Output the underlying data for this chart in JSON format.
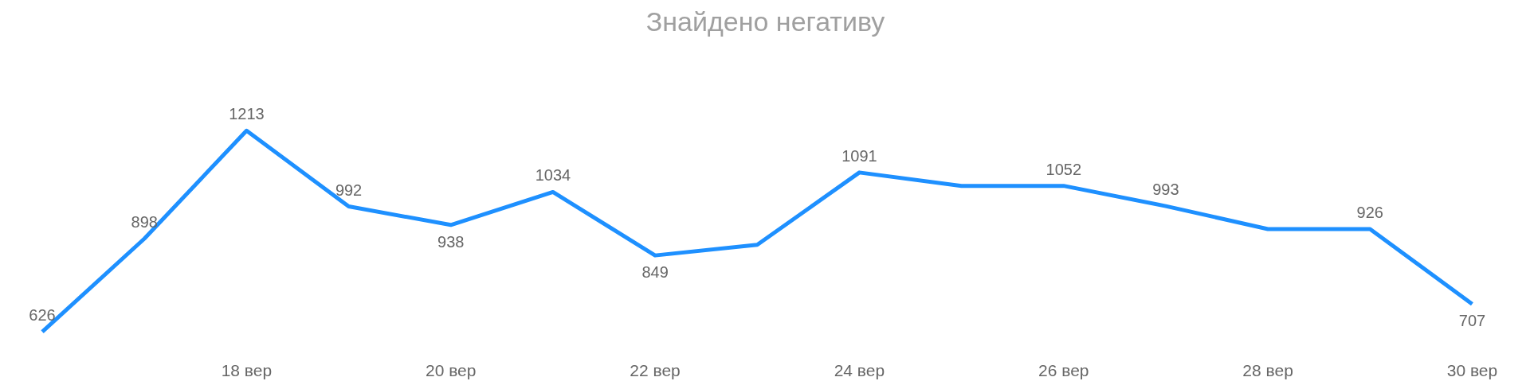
{
  "chart_data": {
    "type": "line",
    "title": "Знайдено негативу",
    "categories": [
      null,
      null,
      "18 вер",
      null,
      "20 вер",
      null,
      "22 вер",
      null,
      "24 вер",
      null,
      "26 вер",
      null,
      "28 вер",
      null,
      "30 вер"
    ],
    "series": [
      {
        "color": "#1e90ff",
        "values": [
          626,
          898,
          1213,
          992,
          938,
          1034,
          849,
          880,
          1091,
          1052,
          1052,
          993,
          926,
          926,
          707
        ],
        "value_labels": [
          "626",
          "898",
          "1213",
          "992",
          "938",
          "1034",
          "849",
          null,
          "1091",
          null,
          "1052",
          "993",
          null,
          "926",
          "707"
        ]
      }
    ],
    "grid": false,
    "marker": "none",
    "line_style": "solid"
  }
}
